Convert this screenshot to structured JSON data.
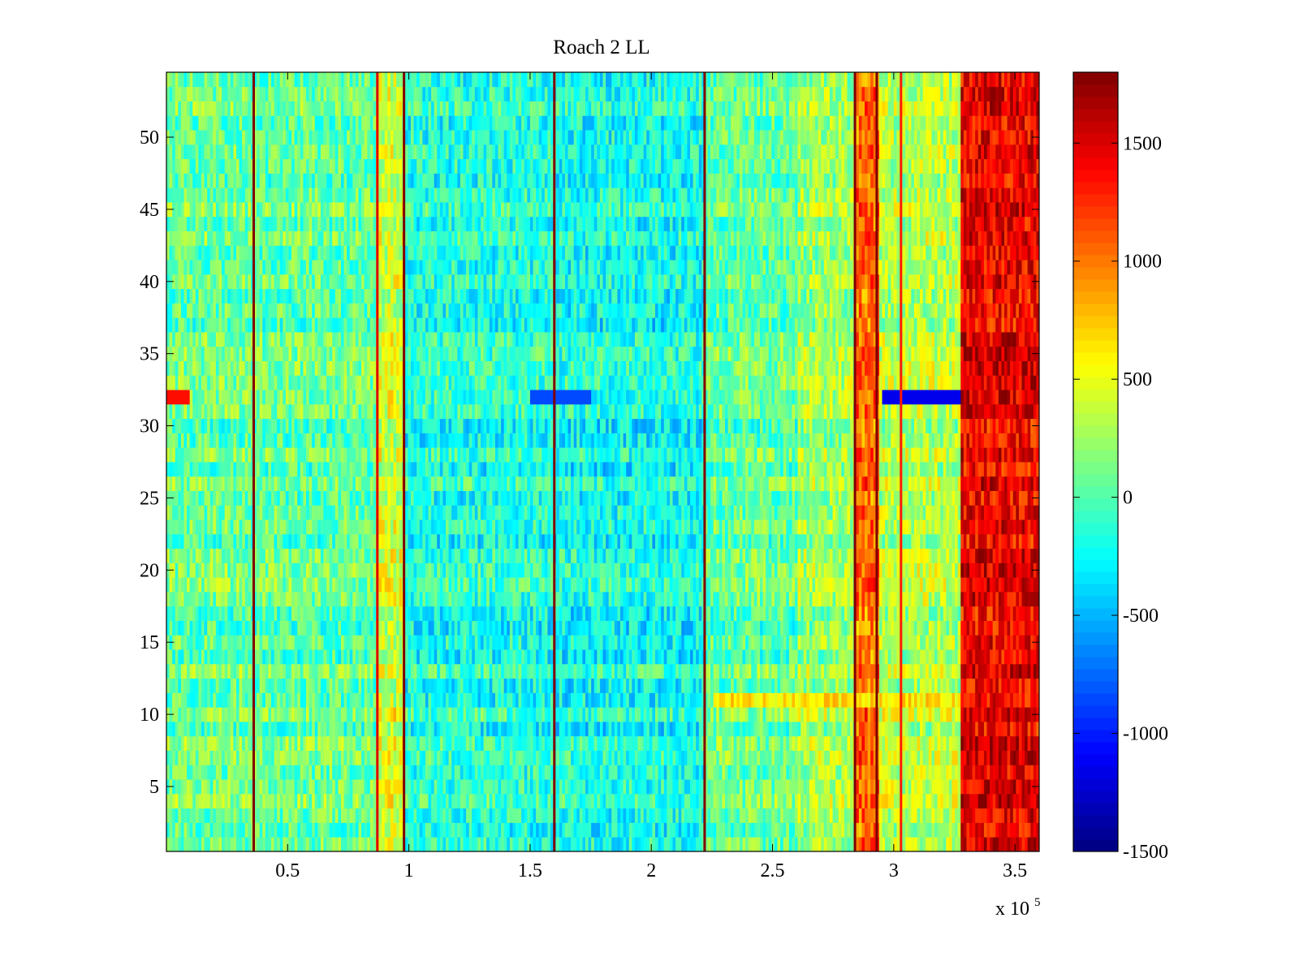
{
  "chart_data": {
    "type": "heatmap",
    "title": "Roach 2 LL",
    "xlabel": "",
    "ylabel": "",
    "x_multiplier_label": "x 10",
    "x_multiplier_exponent": "5",
    "xlim": [
      0,
      3.6
    ],
    "ylim": [
      0.5,
      54.5
    ],
    "rows": 54,
    "x_ticks": [
      0.5,
      1,
      1.5,
      2,
      2.5,
      3,
      3.5
    ],
    "x_tick_labels": [
      "0.5",
      "1",
      "1.5",
      "2",
      "2.5",
      "3",
      "3.5"
    ],
    "y_ticks": [
      5,
      10,
      15,
      20,
      25,
      30,
      35,
      40,
      45,
      50
    ],
    "y_tick_labels": [
      "5",
      "10",
      "15",
      "20",
      "25",
      "30",
      "35",
      "40",
      "45",
      "50"
    ],
    "colorbar": {
      "colormap": "jet",
      "clim": [
        -1500,
        1800
      ],
      "ticks": [
        -1500,
        -1000,
        -500,
        0,
        500,
        1000,
        1500
      ],
      "tick_labels": [
        "-1500",
        "-1000",
        "-500",
        "0",
        "500",
        "1000",
        "1500"
      ]
    },
    "baseline_by_segment": [
      {
        "x_range": [
          0,
          0.35
        ],
        "mean": 80
      },
      {
        "x_range": [
          0.35,
          0.86
        ],
        "mean": 60
      },
      {
        "x_range": [
          0.86,
          0.98
        ],
        "mean": 420
      },
      {
        "x_range": [
          0.98,
          1.6
        ],
        "mean": -150
      },
      {
        "x_range": [
          1.6,
          2.22
        ],
        "mean": -200
      },
      {
        "x_range": [
          2.22,
          2.6
        ],
        "mean": 60
      },
      {
        "x_range": [
          2.6,
          2.84
        ],
        "mean": 250
      },
      {
        "x_range": [
          2.84,
          2.94
        ],
        "mean": 1050
      },
      {
        "x_range": [
          2.94,
          3.28
        ],
        "mean": 330
      },
      {
        "x_range": [
          3.28,
          3.6
        ],
        "mean": 1450
      }
    ],
    "vertical_stripes": [
      {
        "x": 0.36,
        "value": 1800
      },
      {
        "x": 0.87,
        "value": 1500
      },
      {
        "x": 0.98,
        "value": 1800
      },
      {
        "x": 1.6,
        "value": 1800
      },
      {
        "x": 2.22,
        "value": 1800
      },
      {
        "x": 2.84,
        "value": 1800
      },
      {
        "x": 2.93,
        "value": 1800
      },
      {
        "x": 3.03,
        "value": 1300
      }
    ],
    "row_anomalies": [
      {
        "row": 32,
        "note": "row 32 deviates: hot at far left, cold (about -1100) near x 2.95-3.28"
      },
      {
        "row": 11,
        "note": "row 11 elevated (about 700) from x 2.25 to 3.28"
      }
    ]
  }
}
